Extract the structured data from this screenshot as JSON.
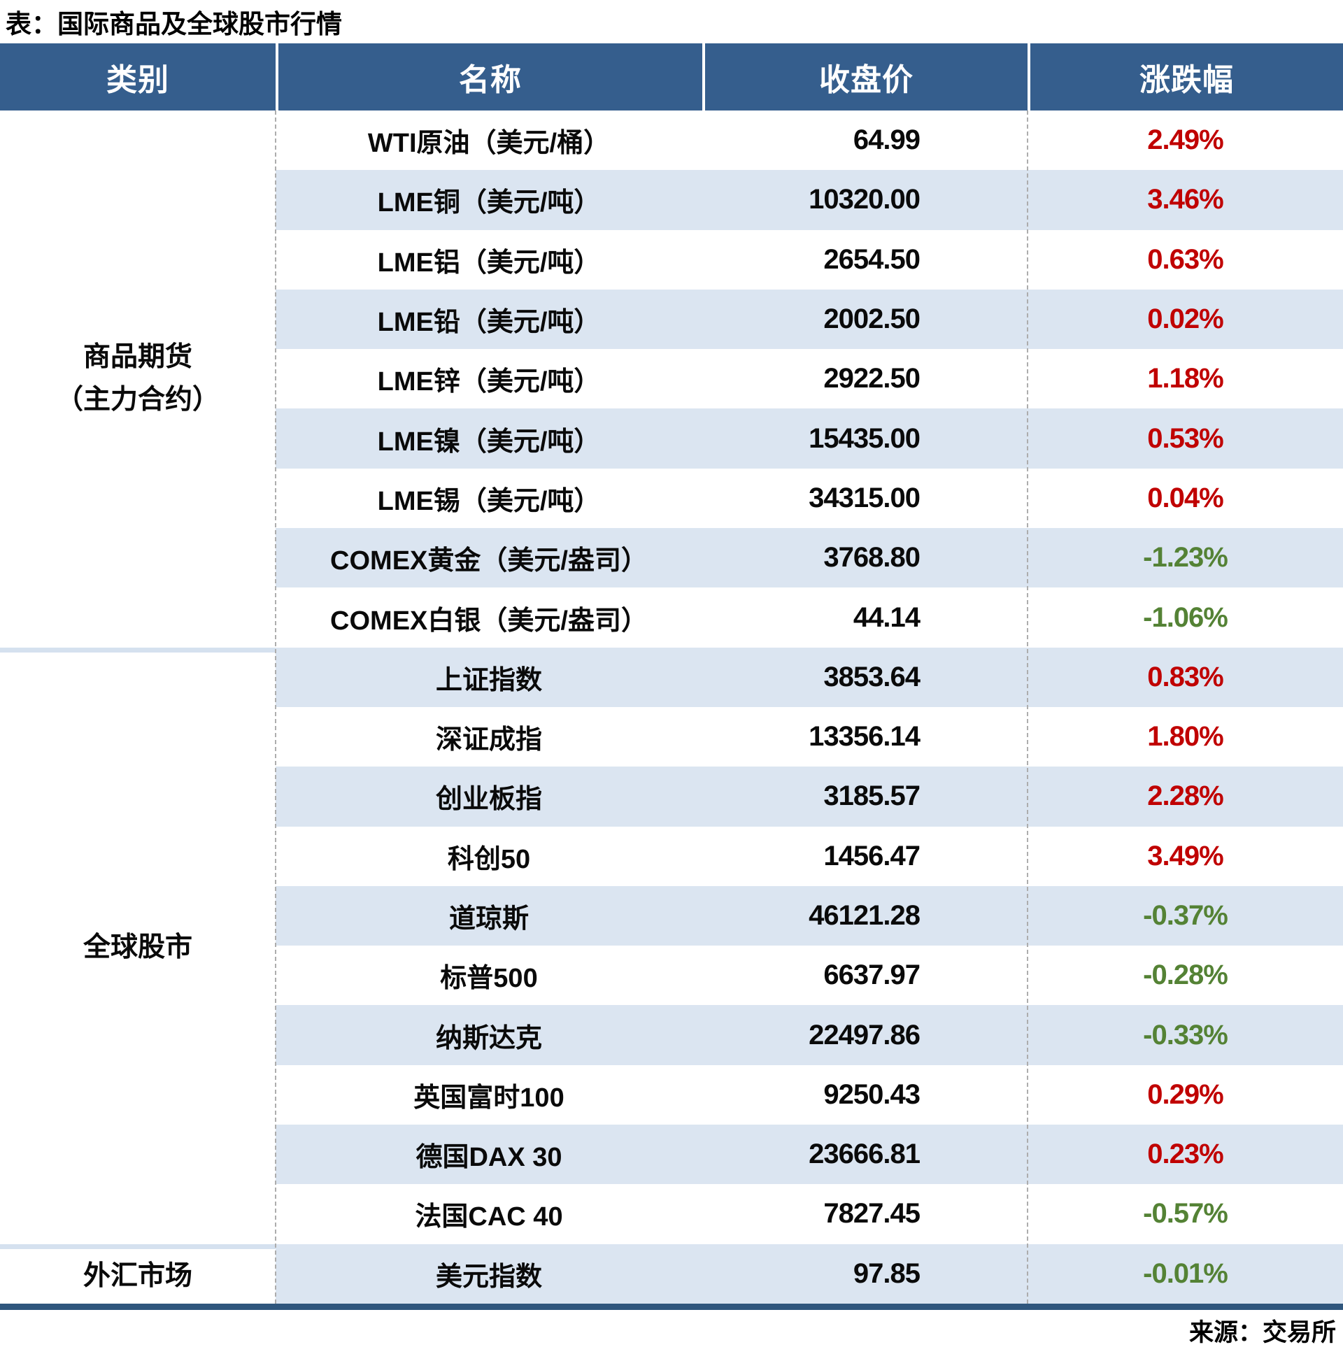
{
  "title": "表：国际商品及全球股市行情",
  "source": "来源：交易所",
  "colors": {
    "header_bg": "#355E8D",
    "stripe": "#DBE5F1",
    "up_red": "#C00000",
    "down_green": "#548235",
    "bottom_rule": "#2F567D"
  },
  "chart_data": {
    "type": "table",
    "title": "表：国际商品及全球股市行情",
    "columns": [
      "类别",
      "名称",
      "收盘价",
      "涨跌幅"
    ],
    "source": "来源：交易所",
    "sections": [
      {
        "category": "商品期货（主力合约）",
        "category_lines": [
          "商品期货",
          "（主力合约）"
        ],
        "rows": [
          {
            "name": "WTI原油（美元/桶）",
            "close": "64.99",
            "change": "2.49%",
            "direction": "up"
          },
          {
            "name": "LME铜（美元/吨）",
            "close": "10320.00",
            "change": "3.46%",
            "direction": "up"
          },
          {
            "name": "LME铝（美元/吨）",
            "close": "2654.50",
            "change": "0.63%",
            "direction": "up"
          },
          {
            "name": "LME铅（美元/吨）",
            "close": "2002.50",
            "change": "0.02%",
            "direction": "up"
          },
          {
            "name": "LME锌（美元/吨）",
            "close": "2922.50",
            "change": "1.18%",
            "direction": "up"
          },
          {
            "name": "LME镍（美元/吨）",
            "close": "15435.00",
            "change": "0.53%",
            "direction": "up"
          },
          {
            "name": "LME锡（美元/吨）",
            "close": "34315.00",
            "change": "0.04%",
            "direction": "up"
          },
          {
            "name": "COMEX黄金（美元/盎司）",
            "close": "3768.80",
            "change": "-1.23%",
            "direction": "down"
          },
          {
            "name": "COMEX白银（美元/盎司）",
            "close": "44.14",
            "change": "-1.06%",
            "direction": "down"
          }
        ]
      },
      {
        "category": "全球股市",
        "category_lines": [
          "全球股市"
        ],
        "rows": [
          {
            "name": "上证指数",
            "close": "3853.64",
            "change": "0.83%",
            "direction": "up"
          },
          {
            "name": "深证成指",
            "close": "13356.14",
            "change": "1.80%",
            "direction": "up"
          },
          {
            "name": "创业板指",
            "close": "3185.57",
            "change": "2.28%",
            "direction": "up"
          },
          {
            "name": "科创50",
            "close": "1456.47",
            "change": "3.49%",
            "direction": "up"
          },
          {
            "name": "道琼斯",
            "close": "46121.28",
            "change": "-0.37%",
            "direction": "down"
          },
          {
            "name": "标普500",
            "close": "6637.97",
            "change": "-0.28%",
            "direction": "down"
          },
          {
            "name": "纳斯达克",
            "close": "22497.86",
            "change": "-0.33%",
            "direction": "down"
          },
          {
            "name": "英国富时100",
            "close": "9250.43",
            "change": "0.29%",
            "direction": "up"
          },
          {
            "name": "德国DAX 30",
            "close": "23666.81",
            "change": "0.23%",
            "direction": "up"
          },
          {
            "name": "法国CAC 40",
            "close": "7827.45",
            "change": "-0.57%",
            "direction": "down"
          }
        ]
      },
      {
        "category": "外汇市场",
        "category_lines": [
          "外汇市场"
        ],
        "rows": [
          {
            "name": "美元指数",
            "close": "97.85",
            "change": "-0.01%",
            "direction": "down"
          }
        ]
      }
    ]
  }
}
